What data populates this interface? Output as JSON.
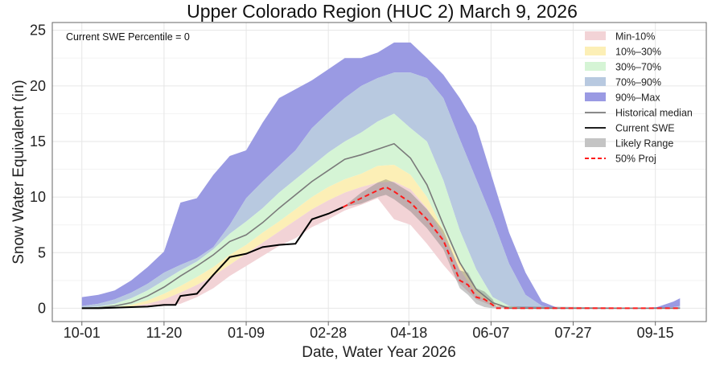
{
  "chart_data": {
    "type": "area",
    "title": "Upper Colorado Region (HUC 2) March 9, 2026",
    "xlabel": "Date, Water Year 2026",
    "ylabel": "Snow Water Equivalent (in)",
    "annotation": "Current SWE Percentile = 0",
    "xlim": [
      "2025-09-13",
      "2026-10-16"
    ],
    "ylim": [
      -1.2,
      25.7
    ],
    "x_ticks": [
      {
        "date": "2025-10-01",
        "label": "10-01"
      },
      {
        "date": "2025-11-20",
        "label": "11-20"
      },
      {
        "date": "2026-01-09",
        "label": "01-09"
      },
      {
        "date": "2026-02-28",
        "label": "02-28"
      },
      {
        "date": "2026-04-18",
        "label": "04-18"
      },
      {
        "date": "2026-06-07",
        "label": "06-07"
      },
      {
        "date": "2026-07-27",
        "label": "07-27"
      },
      {
        "date": "2026-09-15",
        "label": "09-15"
      }
    ],
    "y_ticks": [
      0,
      5,
      10,
      15,
      20,
      25
    ],
    "grid": true,
    "legend_position": "top-right",
    "colors": {
      "min_10": "#f2d3d6",
      "p10_30": "#fcefb6",
      "p30_70": "#d5f4d5",
      "p70_90": "#b8c9e0",
      "p90_max": "#9a9ae3",
      "median": "#7a7a7a",
      "current": "#000000",
      "likely": "#8c8c8c",
      "projection": "#ff1a1a"
    },
    "legend": [
      {
        "label": "Min-10%",
        "kind": "patch",
        "key": "min_10"
      },
      {
        "label": "10%–30%",
        "kind": "patch",
        "key": "p10_30"
      },
      {
        "label": "30%–70%",
        "kind": "patch",
        "key": "p30_70"
      },
      {
        "label": "70%–90%",
        "kind": "patch",
        "key": "p70_90"
      },
      {
        "label": "90%–Max",
        "kind": "patch",
        "key": "p90_max"
      },
      {
        "label": "Historical median",
        "kind": "line",
        "key": "median"
      },
      {
        "label": "Current SWE",
        "kind": "line",
        "key": "current"
      },
      {
        "label": "Likely Range",
        "kind": "patch",
        "key": "likely"
      },
      {
        "label": "50% Proj",
        "kind": "dash",
        "key": "projection"
      }
    ],
    "percentile_dates": [
      "2025-10-01",
      "2025-10-11",
      "2025-10-21",
      "2025-10-31",
      "2025-11-10",
      "2025-11-20",
      "2025-11-30",
      "2025-12-10",
      "2025-12-20",
      "2025-12-30",
      "2026-01-09",
      "2026-01-19",
      "2026-01-29",
      "2026-02-08",
      "2026-02-18",
      "2026-02-28",
      "2026-03-10",
      "2026-03-20",
      "2026-03-30",
      "2026-04-09",
      "2026-04-19",
      "2026-04-29",
      "2026-05-09",
      "2026-05-19",
      "2026-05-29",
      "2026-06-08",
      "2026-06-18",
      "2026-06-28",
      "2026-07-08",
      "2026-07-18",
      "2026-07-28",
      "2026-08-07",
      "2026-08-17",
      "2026-08-27",
      "2026-09-06",
      "2026-09-16",
      "2026-09-26",
      "2026-09-30"
    ],
    "percentiles": {
      "min": [
        0,
        0,
        0,
        0.05,
        0.1,
        0.2,
        0.4,
        1.0,
        1.8,
        2.9,
        3.8,
        4.7,
        5.6,
        6.3,
        7.3,
        8.0,
        8.8,
        9.3,
        9.9,
        8.0,
        7.5,
        5.8,
        3.9,
        2.2,
        0.8,
        0.2,
        0,
        0,
        0,
        0,
        0,
        0,
        0,
        0,
        0,
        0,
        0,
        0
      ],
      "p10": [
        0,
        0,
        0.05,
        0.15,
        0.4,
        0.8,
        1.4,
        2.1,
        2.9,
        3.9,
        4.9,
        5.9,
        6.9,
        7.9,
        8.9,
        9.7,
        10.4,
        10.9,
        11.3,
        11.4,
        10.7,
        9.0,
        6.5,
        3.5,
        1.3,
        0.3,
        0,
        0,
        0,
        0,
        0,
        0,
        0,
        0,
        0,
        0,
        0,
        0
      ],
      "p30": [
        0,
        0,
        0.1,
        0.3,
        0.7,
        1.3,
        2.0,
        2.8,
        3.7,
        4.8,
        5.7,
        6.8,
        7.8,
        8.9,
        10.0,
        10.9,
        11.6,
        12.1,
        12.8,
        12.9,
        12.0,
        10.0,
        7.0,
        4.0,
        1.6,
        0.4,
        0,
        0,
        0,
        0,
        0,
        0,
        0,
        0,
        0,
        0,
        0,
        0
      ],
      "p70": [
        0.05,
        0.15,
        0.4,
        0.9,
        1.6,
        2.5,
        3.4,
        4.2,
        5.3,
        6.7,
        7.8,
        9.0,
        10.4,
        11.6,
        12.8,
        14.0,
        15.0,
        15.8,
        16.8,
        17.5,
        16.2,
        15.0,
        11.5,
        7.0,
        3.5,
        1.0,
        0.2,
        0,
        0,
        0,
        0,
        0,
        0,
        0,
        0,
        0,
        0,
        0
      ],
      "p90": [
        0.2,
        0.4,
        0.8,
        1.4,
        2.2,
        3.2,
        3.9,
        4.5,
        5.5,
        7.5,
        9.9,
        11.4,
        12.8,
        14.2,
        16.2,
        17.6,
        18.9,
        20.0,
        20.7,
        21.2,
        21.2,
        20.7,
        18.9,
        15.2,
        11.6,
        8.0,
        4.0,
        1.2,
        0.2,
        0,
        0,
        0,
        0,
        0,
        0,
        0,
        0.1,
        0.2
      ],
      "max": [
        1.0,
        1.2,
        1.6,
        2.5,
        3.7,
        5.1,
        9.5,
        9.9,
        12.0,
        13.7,
        14.2,
        16.7,
        18.9,
        19.7,
        20.5,
        21.5,
        22.5,
        22.5,
        23.0,
        23.9,
        23.9,
        22.5,
        21.0,
        18.9,
        16.4,
        11.6,
        6.8,
        3.2,
        0.6,
        0,
        0,
        0,
        0,
        0,
        0,
        0.1,
        0.6,
        0.9
      ]
    },
    "median": [
      0,
      0.05,
      0.2,
      0.5,
      1.1,
      1.9,
      2.9,
      3.8,
      4.8,
      6.0,
      6.6,
      7.7,
      9.0,
      10.2,
      11.4,
      12.4,
      13.4,
      13.8,
      14.3,
      14.8,
      13.5,
      11.1,
      7.5,
      4.1,
      1.7,
      0.5,
      0,
      0,
      0,
      0,
      0,
      0,
      0,
      0,
      0,
      0,
      0,
      0
    ],
    "current_swe": {
      "dates": [
        "2025-10-01",
        "2025-10-11",
        "2025-10-21",
        "2025-10-31",
        "2025-11-10",
        "2025-11-20",
        "2025-11-27",
        "2025-11-30",
        "2025-12-10",
        "2025-12-20",
        "2025-12-30",
        "2026-01-09",
        "2026-01-19",
        "2026-01-29",
        "2026-02-08",
        "2026-02-18",
        "2026-02-28",
        "2026-03-09"
      ],
      "values": [
        0,
        0,
        0.05,
        0.1,
        0.15,
        0.3,
        0.3,
        1.1,
        1.3,
        3.0,
        4.6,
        4.9,
        5.5,
        5.7,
        5.8,
        8.0,
        8.5,
        9.1
      ]
    },
    "projection": {
      "dates": [
        "2026-03-09",
        "2026-03-20",
        "2026-03-30",
        "2026-04-04",
        "2026-04-09",
        "2026-04-19",
        "2026-04-29",
        "2026-05-09",
        "2026-05-19",
        "2026-05-24",
        "2026-05-29",
        "2026-06-03",
        "2026-06-08",
        "2026-06-10",
        "2026-09-30"
      ],
      "p50": [
        9.1,
        9.9,
        10.6,
        10.9,
        10.5,
        9.5,
        8.0,
        6.1,
        2.5,
        2.1,
        1.0,
        0.8,
        0.3,
        0,
        0
      ],
      "likely_low": [
        9.1,
        9.4,
        10.0,
        10.2,
        9.8,
        8.7,
        7.2,
        5.3,
        1.8,
        1.2,
        0.4,
        0.1,
        0,
        0,
        0
      ],
      "likely_high": [
        9.1,
        10.4,
        11.3,
        11.6,
        11.3,
        10.4,
        8.9,
        7.0,
        3.4,
        3.2,
        1.8,
        1.5,
        0.8,
        0.2,
        0
      ]
    }
  }
}
